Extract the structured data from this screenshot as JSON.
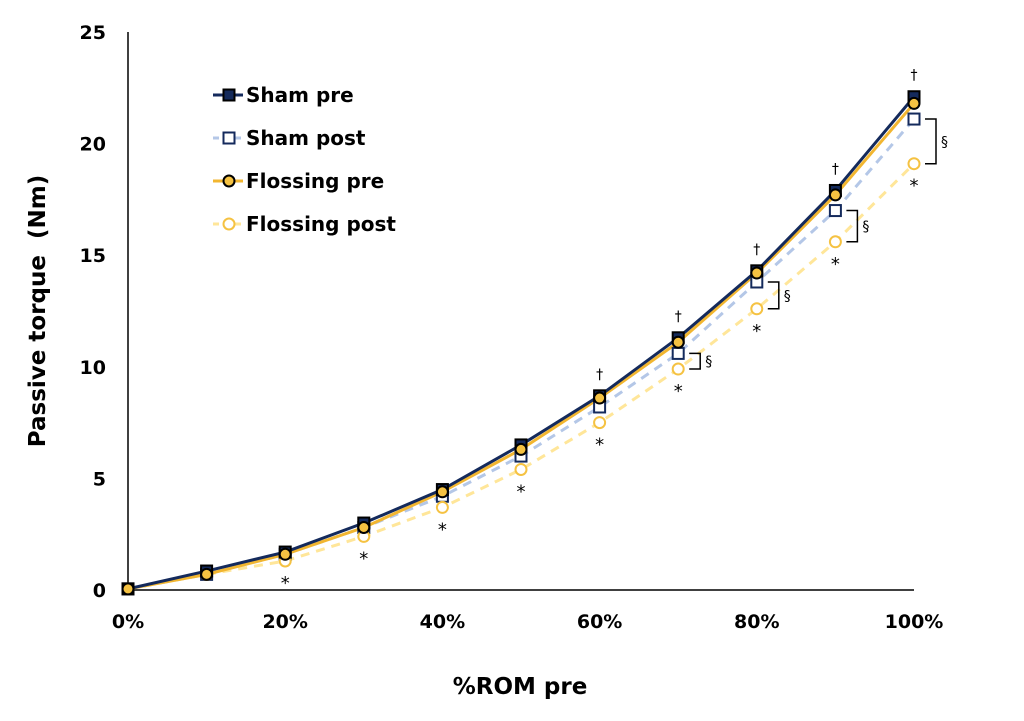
{
  "chart_data": {
    "type": "line",
    "title": "",
    "xlabel": "%ROM pre",
    "ylabel": "Passive torque  (Nm)",
    "x": [
      0,
      10,
      20,
      30,
      40,
      50,
      60,
      70,
      80,
      90,
      100
    ],
    "x_tick_labels": [
      "0%",
      "20%",
      "40%",
      "60%",
      "80%",
      "100%"
    ],
    "x_ticks": [
      0,
      20,
      40,
      60,
      80,
      100
    ],
    "y_ticks": [
      0,
      5,
      10,
      15,
      20,
      25
    ],
    "y_tick_labels": [
      "0",
      "5",
      "10",
      "15",
      "20",
      "25"
    ],
    "xlim": [
      0,
      100
    ],
    "ylim": [
      0,
      25
    ],
    "grid": false,
    "legend_position": "top-left",
    "series": [
      {
        "name": "Sham pre",
        "values": [
          0.05,
          0.85,
          1.7,
          3.0,
          4.5,
          6.5,
          8.7,
          11.3,
          14.3,
          17.9,
          22.1
        ],
        "color": "#142a5c",
        "marker": "filled-square",
        "marker_fill": "#142a5c",
        "dash": false
      },
      {
        "name": "Sham post",
        "values": [
          0.05,
          0.7,
          1.6,
          2.8,
          4.2,
          6.0,
          8.2,
          10.6,
          13.8,
          17.0,
          21.1
        ],
        "color": "#b4c7e7",
        "marker": "open-square",
        "marker_stroke": "#142a5c",
        "dash": true
      },
      {
        "name": "Flossing pre",
        "values": [
          0.05,
          0.7,
          1.6,
          2.8,
          4.4,
          6.3,
          8.6,
          11.1,
          14.2,
          17.7,
          21.8
        ],
        "color": "#f2b630",
        "marker": "filled-circle",
        "marker_fill": "#f5c242",
        "marker_stroke": "#000000",
        "dash": false
      },
      {
        "name": "Flossing post",
        "values": [
          0.05,
          0.7,
          1.3,
          2.4,
          3.7,
          5.4,
          7.5,
          9.9,
          12.6,
          15.6,
          19.1
        ],
        "color": "#ffe699",
        "marker": "open-circle",
        "marker_stroke": "#f5c242",
        "dash": true
      }
    ],
    "annotations": {
      "dagger": {
        "symbol": "†",
        "x": [
          60,
          70,
          80,
          90,
          100
        ]
      },
      "asterisk": {
        "symbol": "*",
        "x": [
          20,
          30,
          40,
          50,
          60,
          70,
          80,
          90,
          100
        ]
      },
      "section": {
        "symbol": "§",
        "x": [
          70,
          80,
          90,
          100
        ]
      }
    }
  }
}
